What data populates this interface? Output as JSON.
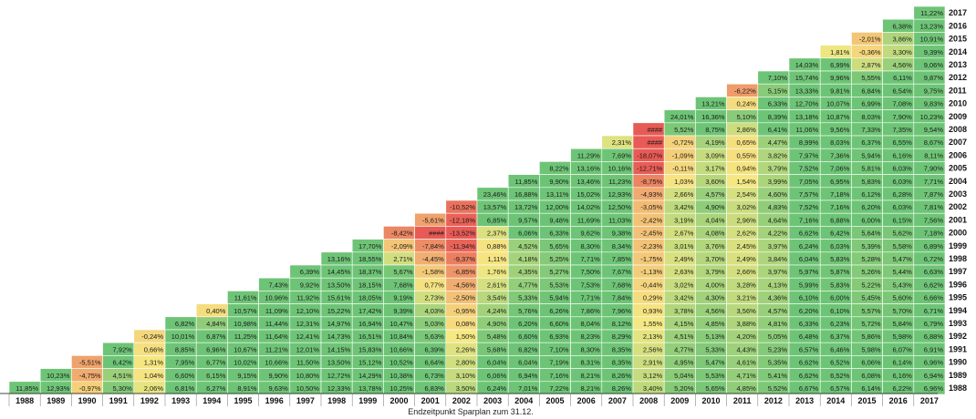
{
  "chart_data": {
    "type": "heatmap",
    "xlabel": "Endzeitpunkt Sparplan zum 31.12.",
    "ylabel": "",
    "start_years": [
      2017,
      2016,
      2015,
      2014,
      2013,
      2012,
      2011,
      2010,
      2009,
      2008,
      2007,
      2006,
      2005,
      2004,
      2003,
      2002,
      2001,
      2000,
      1999,
      1998,
      1997,
      1996,
      1995,
      1994,
      1993,
      1992,
      1991,
      1990,
      1989,
      1988
    ],
    "end_years": [
      1988,
      1989,
      1990,
      1991,
      1992,
      1993,
      1994,
      1995,
      1996,
      1997,
      1998,
      1999,
      2000,
      2001,
      2002,
      2003,
      2004,
      2005,
      2006,
      2007,
      2008,
      2009,
      2010,
      2011,
      2012,
      2013,
      2014,
      2015,
      2016,
      2017
    ],
    "rows": [
      {
        "start": 2017,
        "cells": [
          "11,22%"
        ]
      },
      {
        "start": 2016,
        "cells": [
          "6,38%",
          "13,23%"
        ]
      },
      {
        "start": 2015,
        "cells": [
          "-2,01%",
          "3,86%",
          "10,91%"
        ]
      },
      {
        "start": 2014,
        "cells": [
          "1,81%",
          "-0,36%",
          "3,30%",
          "9,39%"
        ]
      },
      {
        "start": 2013,
        "cells": [
          "14,03%",
          "6,99%",
          "2,87%",
          "4,56%",
          "9,06%"
        ]
      },
      {
        "start": 2012,
        "cells": [
          "7,10%",
          "15,74%",
          "9,96%",
          "5,55%",
          "6,11%",
          "9,87%"
        ]
      },
      {
        "start": 2011,
        "cells": [
          "-6,22%",
          "5,15%",
          "13,33%",
          "9,81%",
          "6,84%",
          "6,54%",
          "9,75%"
        ]
      },
      {
        "start": 2010,
        "cells": [
          "13,21%",
          "0,24%",
          "6,33%",
          "12,70%",
          "10,07%",
          "6,99%",
          "7,08%",
          "9,83%"
        ]
      },
      {
        "start": 2009,
        "cells": [
          "24,01%",
          "16,36%",
          "5,10%",
          "8,39%",
          "13,18%",
          "10,87%",
          "8,03%",
          "7,90%",
          "10,23%"
        ]
      },
      {
        "start": 2008,
        "cells": [
          "####",
          "5,52%",
          "8,75%",
          "2,86%",
          "6,41%",
          "11,06%",
          "9,56%",
          "7,33%",
          "7,35%",
          "9,54%"
        ]
      },
      {
        "start": 2007,
        "cells": [
          "2,31%",
          "####",
          "-0,72%",
          "4,19%",
          "0,65%",
          "4,47%",
          "8,99%",
          "8,03%",
          "6,37%",
          "6,55%",
          "8,67%"
        ]
      },
      {
        "start": 2006,
        "cells": [
          "11,29%",
          "7,69%",
          "-18,07%",
          "-1,09%",
          "3,09%",
          "0,55%",
          "3,82%",
          "7,97%",
          "7,36%",
          "5,94%",
          "6,16%",
          "8,11%"
        ]
      },
      {
        "start": 2005,
        "cells": [
          "8,22%",
          "13,16%",
          "10,16%",
          "-12,71%",
          "-0,11%",
          "3,17%",
          "0,94%",
          "3,79%",
          "7,52%",
          "7,06%",
          "5,81%",
          "6,03%",
          "7,90%"
        ]
      },
      {
        "start": 2004,
        "cells": [
          "11,85%",
          "9,90%",
          "13,46%",
          "11,23%",
          "-8,75%",
          "1,03%",
          "3,60%",
          "1,54%",
          "3,99%",
          "7,05%",
          "6,95%",
          "5,83%",
          "6,03%",
          "7,71%"
        ]
      },
      {
        "start": 2003,
        "cells": [
          "23,46%",
          "16,88%",
          "13,11%",
          "15,02%",
          "12,93%",
          "-4,93%",
          "2,66%",
          "4,57%",
          "2,54%",
          "4,60%",
          "7,57%",
          "7,18%",
          "6,12%",
          "6,28%",
          "7,87%"
        ]
      },
      {
        "start": 2002,
        "cells": [
          "-10,52%",
          "13,57%",
          "13,72%",
          "12,00%",
          "14,02%",
          "12,50%",
          "-3,05%",
          "3,42%",
          "4,90%",
          "3,02%",
          "4,83%",
          "7,52%",
          "7,16%",
          "6,20%",
          "6,03%",
          "7,81%"
        ]
      },
      {
        "start": 2001,
        "cells": [
          "-5,61%",
          "-12,18%",
          "6,85%",
          "9,57%",
          "9,48%",
          "11,69%",
          "11,03%",
          "-2,42%",
          "3,19%",
          "4,04%",
          "2,96%",
          "4,64%",
          "7,16%",
          "6,88%",
          "6,00%",
          "6,15%",
          "7,56%"
        ]
      },
      {
        "start": 2000,
        "cells": [
          "-8,42%",
          "####",
          "-13,52%",
          "2,37%",
          "6,06%",
          "6,33%",
          "9,62%",
          "9,38%",
          "-2,45%",
          "2,67%",
          "4,08%",
          "2,62%",
          "4,22%",
          "6,62%",
          "6,42%",
          "5,64%",
          "5,62%",
          "7,18%"
        ]
      },
      {
        "start": 1999,
        "cells": [
          "17,70%",
          "-2,09%",
          "-7,84%",
          "-11,94%",
          "0,88%",
          "4,52%",
          "5,65%",
          "8,30%",
          "8,34%",
          "-2,23%",
          "3,01%",
          "3,76%",
          "2,45%",
          "3,97%",
          "6,24%",
          "6,03%",
          "5,39%",
          "5,58%",
          "6,89%"
        ]
      },
      {
        "start": 1998,
        "cells": [
          "13,16%",
          "18,55%",
          "2,71%",
          "-4,45%",
          "-9,37%",
          "1,11%",
          "4,18%",
          "5,25%",
          "7,71%",
          "7,85%",
          "-1,75%",
          "2,49%",
          "3,70%",
          "2,49%",
          "3,84%",
          "6,04%",
          "5,83%",
          "5,28%",
          "5,47%",
          "6,72%"
        ]
      },
      {
        "start": 1997,
        "cells": [
          "6,39%",
          "14,45%",
          "18,37%",
          "5,67%",
          "-1,58%",
          "-6,85%",
          "1,76%",
          "4,35%",
          "5,27%",
          "7,50%",
          "7,67%",
          "-1,13%",
          "2,63%",
          "3,79%",
          "2,66%",
          "3,97%",
          "5,97%",
          "5,87%",
          "5,26%",
          "5,44%",
          "6,63%"
        ]
      },
      {
        "start": 1996,
        "cells": [
          "7,43%",
          "9,92%",
          "13,50%",
          "18,15%",
          "7,68%",
          "0,77%",
          "-4,56%",
          "2,61%",
          "4,77%",
          "5,53%",
          "7,53%",
          "7,68%",
          "-0,44%",
          "3,02%",
          "4,00%",
          "3,28%",
          "4,13%",
          "5,99%",
          "5,83%",
          "5,22%",
          "5,43%",
          "6,62%"
        ]
      },
      {
        "start": 1995,
        "cells": [
          "11,61%",
          "10,96%",
          "11,92%",
          "15,61%",
          "18,05%",
          "9,19%",
          "2,73%",
          "-2,50%",
          "3,54%",
          "5,33%",
          "5,94%",
          "7,71%",
          "7,84%",
          "0,29%",
          "3,42%",
          "4,30%",
          "3,21%",
          "4,36%",
          "6,10%",
          "6,00%",
          "5,45%",
          "5,60%",
          "6,66%"
        ]
      },
      {
        "start": 1994,
        "cells": [
          "0,40%",
          "10,57%",
          "11,09%",
          "12,10%",
          "15,22%",
          "17,42%",
          "9,39%",
          "4,03%",
          "-0,95%",
          "4,24%",
          "5,76%",
          "6,26%",
          "7,86%",
          "7,96%",
          "0,93%",
          "3,78%",
          "4,56%",
          "3,56%",
          "4,57%",
          "6,20%",
          "6,10%",
          "5,57%",
          "5,70%",
          "6,71%"
        ]
      },
      {
        "start": 1993,
        "cells": [
          "6,82%",
          "4,84%",
          "10,98%",
          "11,44%",
          "12,31%",
          "14,97%",
          "16,94%",
          "10,47%",
          "5,03%",
          "0,08%",
          "4,90%",
          "6,20%",
          "6,60%",
          "8,04%",
          "8,12%",
          "1,55%",
          "4,15%",
          "4,85%",
          "3,88%",
          "4,81%",
          "6,33%",
          "6,23%",
          "5,72%",
          "5,84%",
          "6,79%"
        ]
      },
      {
        "start": 1992,
        "cells": [
          "-0,24%",
          "10,01%",
          "6,87%",
          "11,25%",
          "11,64%",
          "12,41%",
          "14,73%",
          "16,51%",
          "10,84%",
          "5,63%",
          "1,50%",
          "5,48%",
          "6,60%",
          "6,93%",
          "8,23%",
          "8,29%",
          "2,13%",
          "4,51%",
          "5,13%",
          "4,20%",
          "5,05%",
          "6,48%",
          "6,37%",
          "5,86%",
          "5,98%",
          "6,88%"
        ]
      },
      {
        "start": 1991,
        "cells": [
          "7,92%",
          "0,66%",
          "8,85%",
          "6,96%",
          "10,67%",
          "11,21%",
          "12,01%",
          "14,15%",
          "15,83%",
          "10,66%",
          "6,39%",
          "2,26%",
          "5,68%",
          "6,82%",
          "7,10%",
          "8,30%",
          "8,35%",
          "2,56%",
          "4,77%",
          "5,33%",
          "4,43%",
          "5,23%",
          "6,57%",
          "6,46%",
          "5,98%",
          "6,07%",
          "6,91%"
        ]
      },
      {
        "start": 1990,
        "cells": [
          "-5,51%",
          "6,42%",
          "1,31%",
          "7,95%",
          "6,77%",
          "10,02%",
          "10,66%",
          "11,50%",
          "13,50%",
          "15,12%",
          "10,52%",
          "6,64%",
          "2,80%",
          "6,04%",
          "6,04%",
          "7,19%",
          "8,31%",
          "8,35%",
          "2,91%",
          "4,95%",
          "5,47%",
          "4,61%",
          "5,35%",
          "6,62%",
          "6,52%",
          "6,06%",
          "6,14%",
          "6,96%"
        ]
      },
      {
        "start": 1989,
        "cells": [
          "10,23%",
          "-4,75%",
          "4,51%",
          "1,04%",
          "6,60%",
          "6,15%",
          "9,15%",
          "9,90%",
          "10,80%",
          "12,72%",
          "14,29%",
          "10,38%",
          "6,73%",
          "3,10%",
          "6,06%",
          "6,94%",
          "7,16%",
          "8,21%",
          "8,26%",
          "3,12%",
          "5,04%",
          "5,53%",
          "4,71%",
          "5,41%",
          "6,62%",
          "6,52%",
          "6,08%",
          "6,16%",
          "6,94%"
        ]
      },
      {
        "start": 1988,
        "cells": [
          "11,85%",
          "12,93%",
          "-0,97%",
          "5,30%",
          "2,06%",
          "6,81%",
          "6,27%",
          "8,91%",
          "9,63%",
          "10,50%",
          "12,33%",
          "13,78%",
          "10,25%",
          "6,83%",
          "3,50%",
          "6,24%",
          "7,01%",
          "7,22%",
          "8,21%",
          "8,26%",
          "3,40%",
          "5,20%",
          "5,65%",
          "4,85%",
          "5,52%",
          "6,67%",
          "6,57%",
          "6,14%",
          "6,22%",
          "6,96%"
        ]
      }
    ]
  }
}
